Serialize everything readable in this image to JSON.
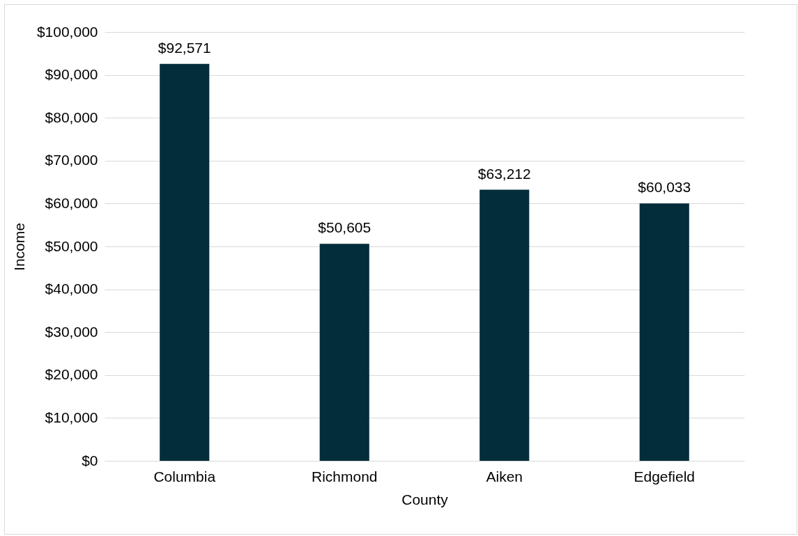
{
  "chart_data": {
    "type": "bar",
    "xlabel": "County",
    "ylabel": "Income",
    "categories": [
      "Columbia",
      "Richmond",
      "Aiken",
      "Edgefield"
    ],
    "values": [
      92571,
      50605,
      63212,
      60033
    ],
    "value_labels": [
      "$92,571",
      "$50,605",
      "$63,212",
      "$60,033"
    ],
    "color": "#042d3b",
    "ylim": [
      0,
      100000
    ],
    "yticks": [
      {
        "value": 0,
        "label": "$0"
      },
      {
        "value": 10000,
        "label": "$10,000"
      },
      {
        "value": 20000,
        "label": "$20,000"
      },
      {
        "value": 30000,
        "label": "$30,000"
      },
      {
        "value": 40000,
        "label": "$40,000"
      },
      {
        "value": 50000,
        "label": "$50,000"
      },
      {
        "value": 60000,
        "label": "$60,000"
      },
      {
        "value": 70000,
        "label": "$70,000"
      },
      {
        "value": 80000,
        "label": "$80,000"
      },
      {
        "value": 90000,
        "label": "$90,000"
      },
      {
        "value": 100000,
        "label": "$100,000"
      }
    ],
    "grid": "y"
  }
}
